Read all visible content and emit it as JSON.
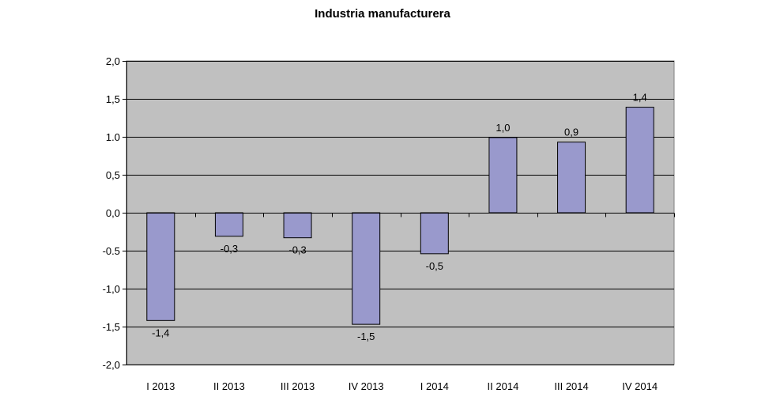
{
  "chart_data": {
    "type": "bar",
    "title": "Industria manufacturera",
    "categories": [
      "I 2013",
      "II 2013",
      "III 2013",
      "IV 2013",
      "I 2014",
      "II 2014",
      "III 2014",
      "IV 2014"
    ],
    "values": [
      -1.42,
      -0.31,
      -0.33,
      -1.47,
      -0.54,
      0.99,
      0.93,
      1.39
    ],
    "data_labels": [
      "-1,4",
      "-0,3",
      "-0,3",
      "-1,5",
      "-0,5",
      "1,0",
      "0,9",
      "1,4"
    ],
    "ylim": [
      -2.0,
      2.0
    ],
    "yticks": [
      2.0,
      1.5,
      1.0,
      0.5,
      0.0,
      -0.5,
      -1.0,
      -1.5,
      -2.0
    ],
    "ytick_labels": [
      "2,0",
      "1,5",
      "1.0",
      "0,5",
      "0,0",
      "-0.5",
      "-1,0",
      "-1,5",
      "-2,0"
    ],
    "grid": true,
    "legend": "none",
    "colors": {
      "bar_fill": "#9999cc",
      "bar_stroke": "#000000",
      "plot_background": "#c0c0c0",
      "gridline": "#000000"
    }
  }
}
